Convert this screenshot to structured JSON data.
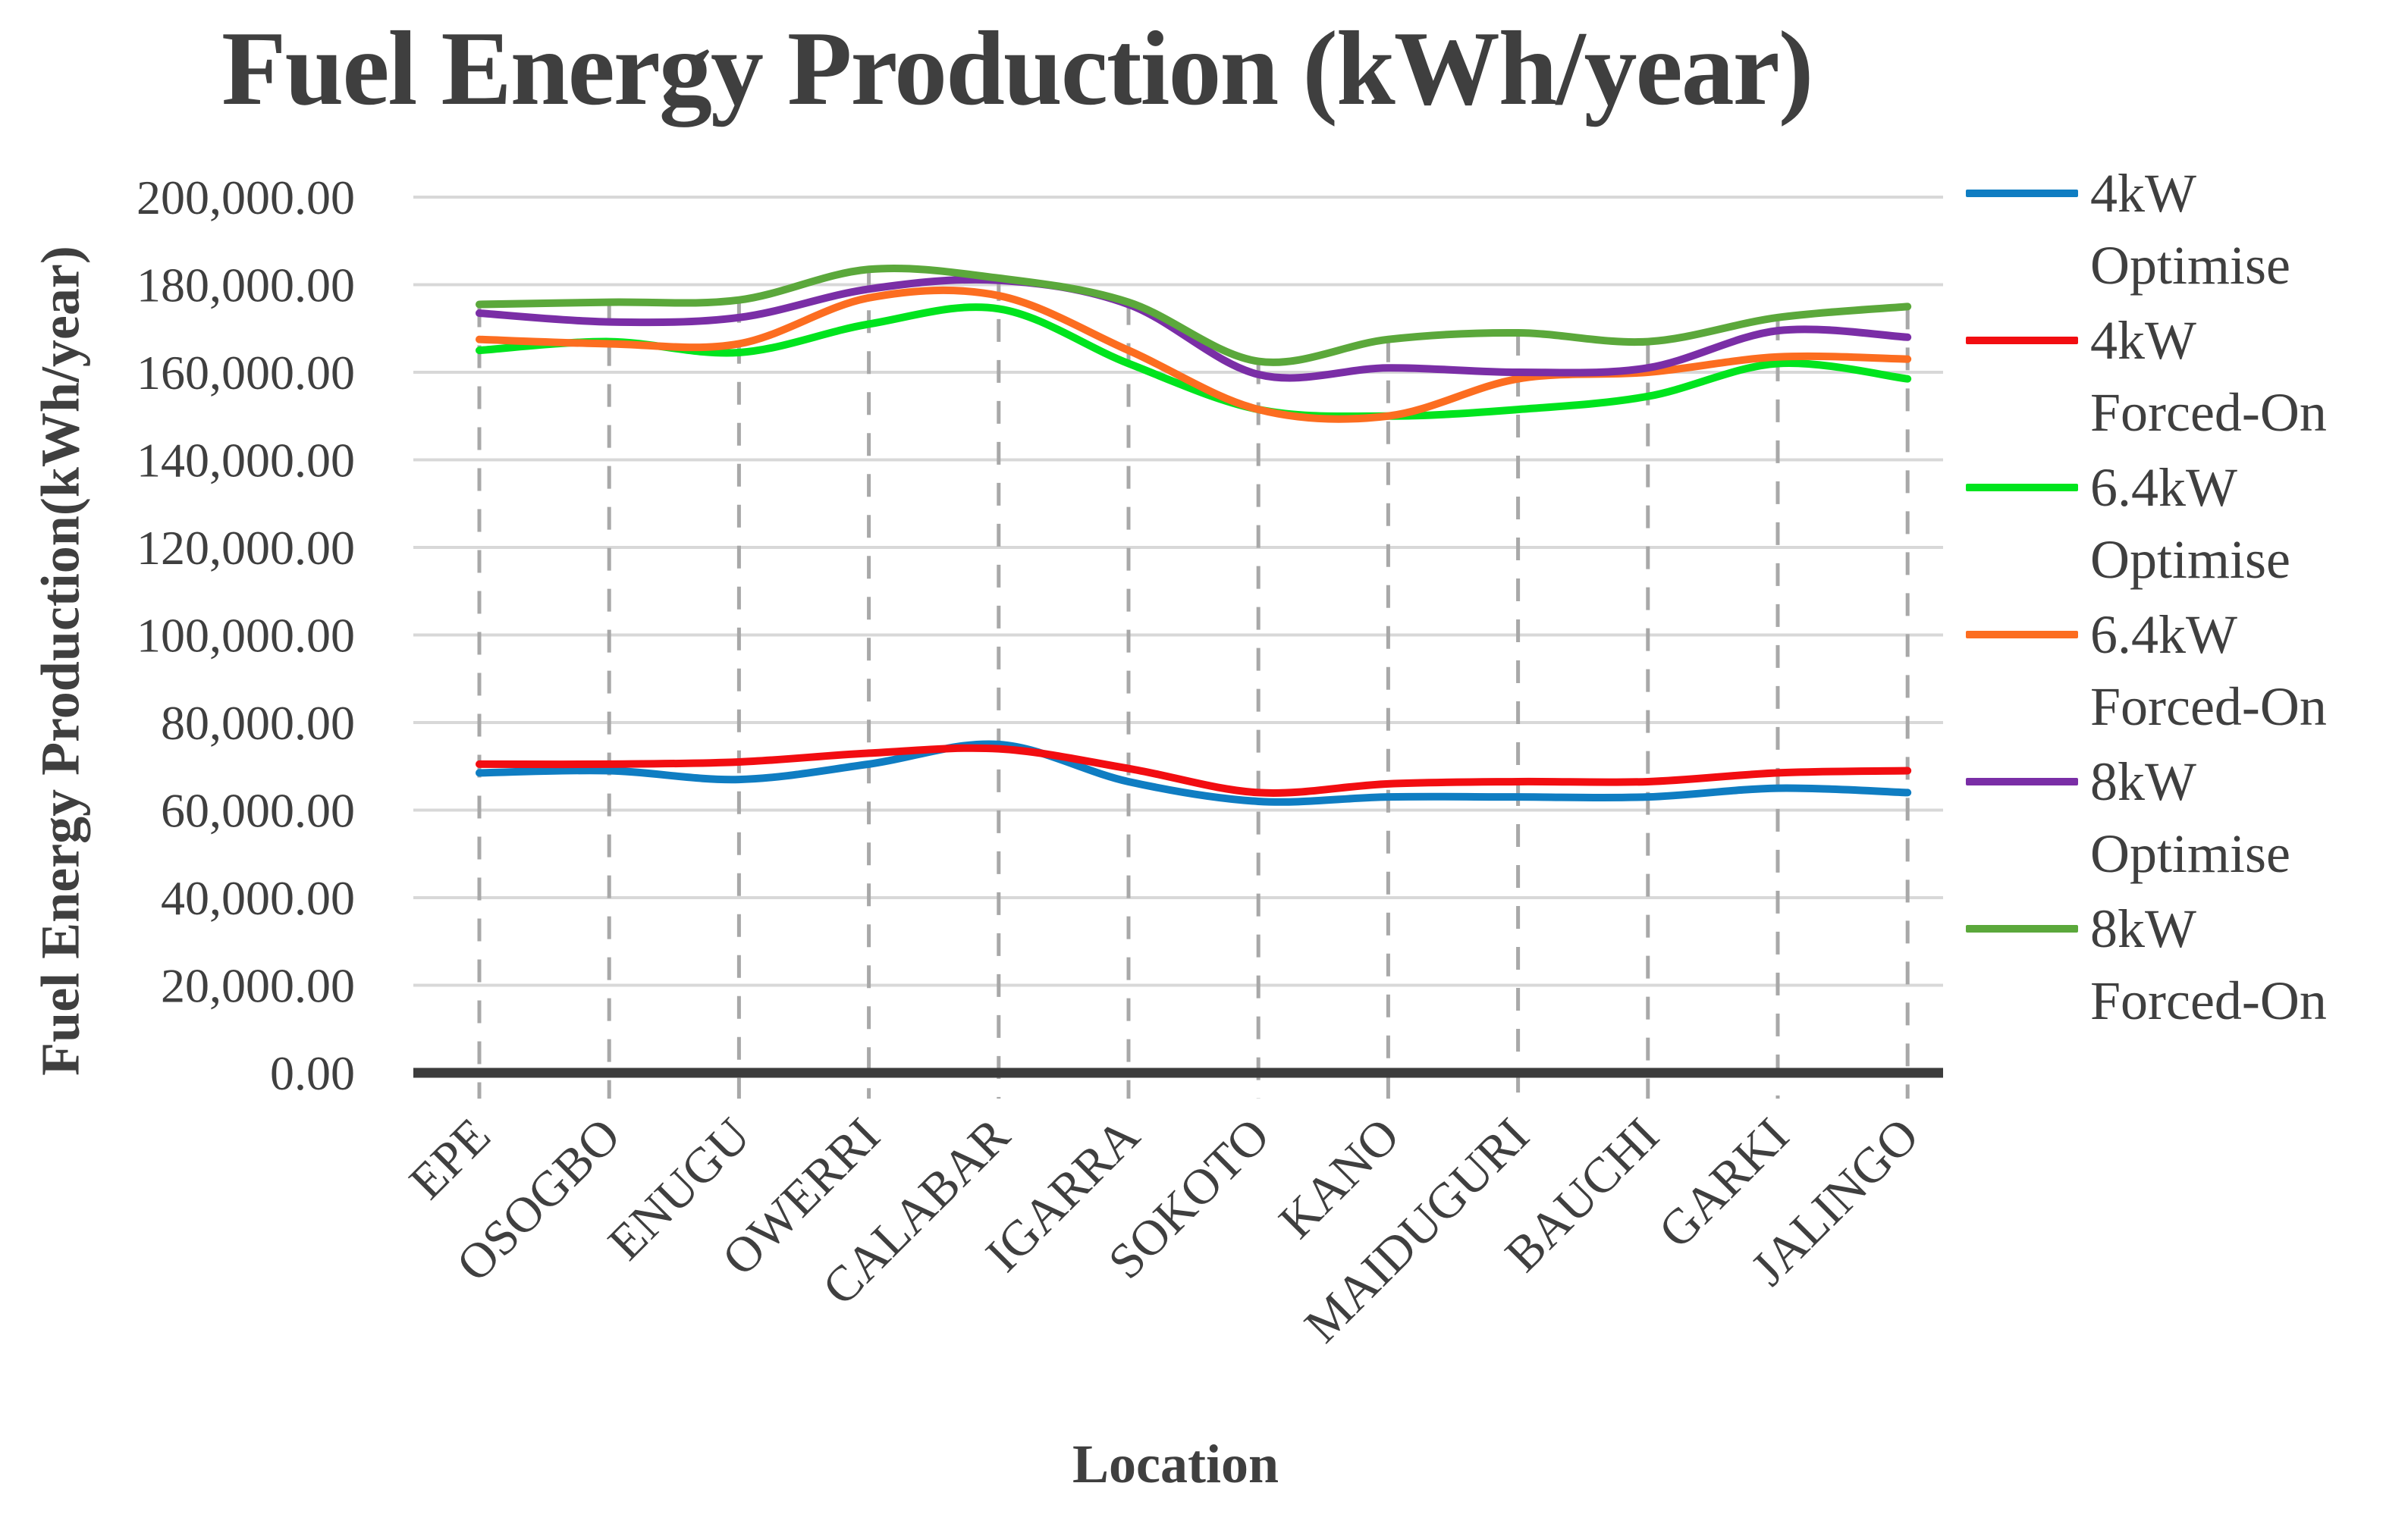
{
  "title": "Fuel Energy Production (kWh/year)",
  "y_axis": {
    "title": "Fuel Energy Production(kWh/year)",
    "tick_labels": [
      "200,000.00",
      "180,000.00",
      "160,000.00",
      "140,000.00",
      "120,000.00",
      "100,000.00",
      "80,000.00",
      "60,000.00",
      "40,000.00",
      "20,000.00",
      "0.00"
    ]
  },
  "x_axis": {
    "title": "Location"
  },
  "chart_data": {
    "type": "line",
    "title": "Fuel Energy Production (kWh/year)",
    "xlabel": "Location",
    "ylabel": "Fuel Energy Production(kWh/year)",
    "ylim": [
      0,
      200000
    ],
    "ytick_step": 20000,
    "grid": true,
    "smooth_lines": true,
    "legend_position": "right",
    "category_drop_lines": "dashed",
    "categories": [
      "EPE",
      "OSOGBO",
      "ENUGU",
      "OWERRI",
      "CALABAR",
      "IGARRA",
      "SOKOTO",
      "KANO",
      "MAIDUGURI",
      "BAUCHI",
      "GARKI",
      "JALINGO"
    ],
    "series": [
      {
        "name": "4kW Optimise",
        "legend_line1": "4kW",
        "legend_line2": "Optimise",
        "color": "#0f7dc2",
        "values": [
          68500,
          69000,
          67000,
          70500,
          75000,
          66500,
          62000,
          63000,
          63000,
          63000,
          65000,
          64000
        ]
      },
      {
        "name": "4kW Forced-On",
        "legend_line1": "4kW",
        "legend_line2": "Forced-On",
        "color": "#f20d11",
        "values": [
          70500,
          70500,
          71000,
          73000,
          74000,
          69500,
          64000,
          66000,
          66500,
          66500,
          68500,
          69000
        ]
      },
      {
        "name": "6.4kW Optimise",
        "legend_line1": "6.4kW",
        "legend_line2": "Optimise",
        "color": "#00e41e",
        "values": [
          165000,
          167000,
          164500,
          171000,
          174500,
          162000,
          151500,
          150000,
          151500,
          154500,
          162000,
          158500
        ]
      },
      {
        "name": "6.4kW Forced-On",
        "legend_line1": "6.4kW",
        "legend_line2": "Forced-On",
        "color": "#fc6d20",
        "values": [
          167500,
          166500,
          166500,
          177000,
          177500,
          165000,
          151500,
          150000,
          158500,
          160000,
          163500,
          163000
        ]
      },
      {
        "name": "8kW Optimise",
        "legend_line1": "8kW",
        "legend_line2": "Optimise",
        "color": "#7a2ea6",
        "values": [
          173500,
          171500,
          172500,
          179000,
          181000,
          175500,
          159500,
          161000,
          160000,
          161000,
          169500,
          168000
        ]
      },
      {
        "name": "8kW Forced-On",
        "legend_line1": "8kW",
        "legend_line2": "Forced-On",
        "color": "#5ba83b",
        "values": [
          175500,
          176000,
          176500,
          183500,
          181500,
          176000,
          162500,
          167500,
          169000,
          167000,
          172500,
          175000
        ]
      }
    ],
    "style_colors": {
      "text": "#3f3f3f",
      "gridline": "#d8d8d8",
      "drop_line": "#a8a8a8",
      "axis_line": "#3c3c3c"
    }
  }
}
